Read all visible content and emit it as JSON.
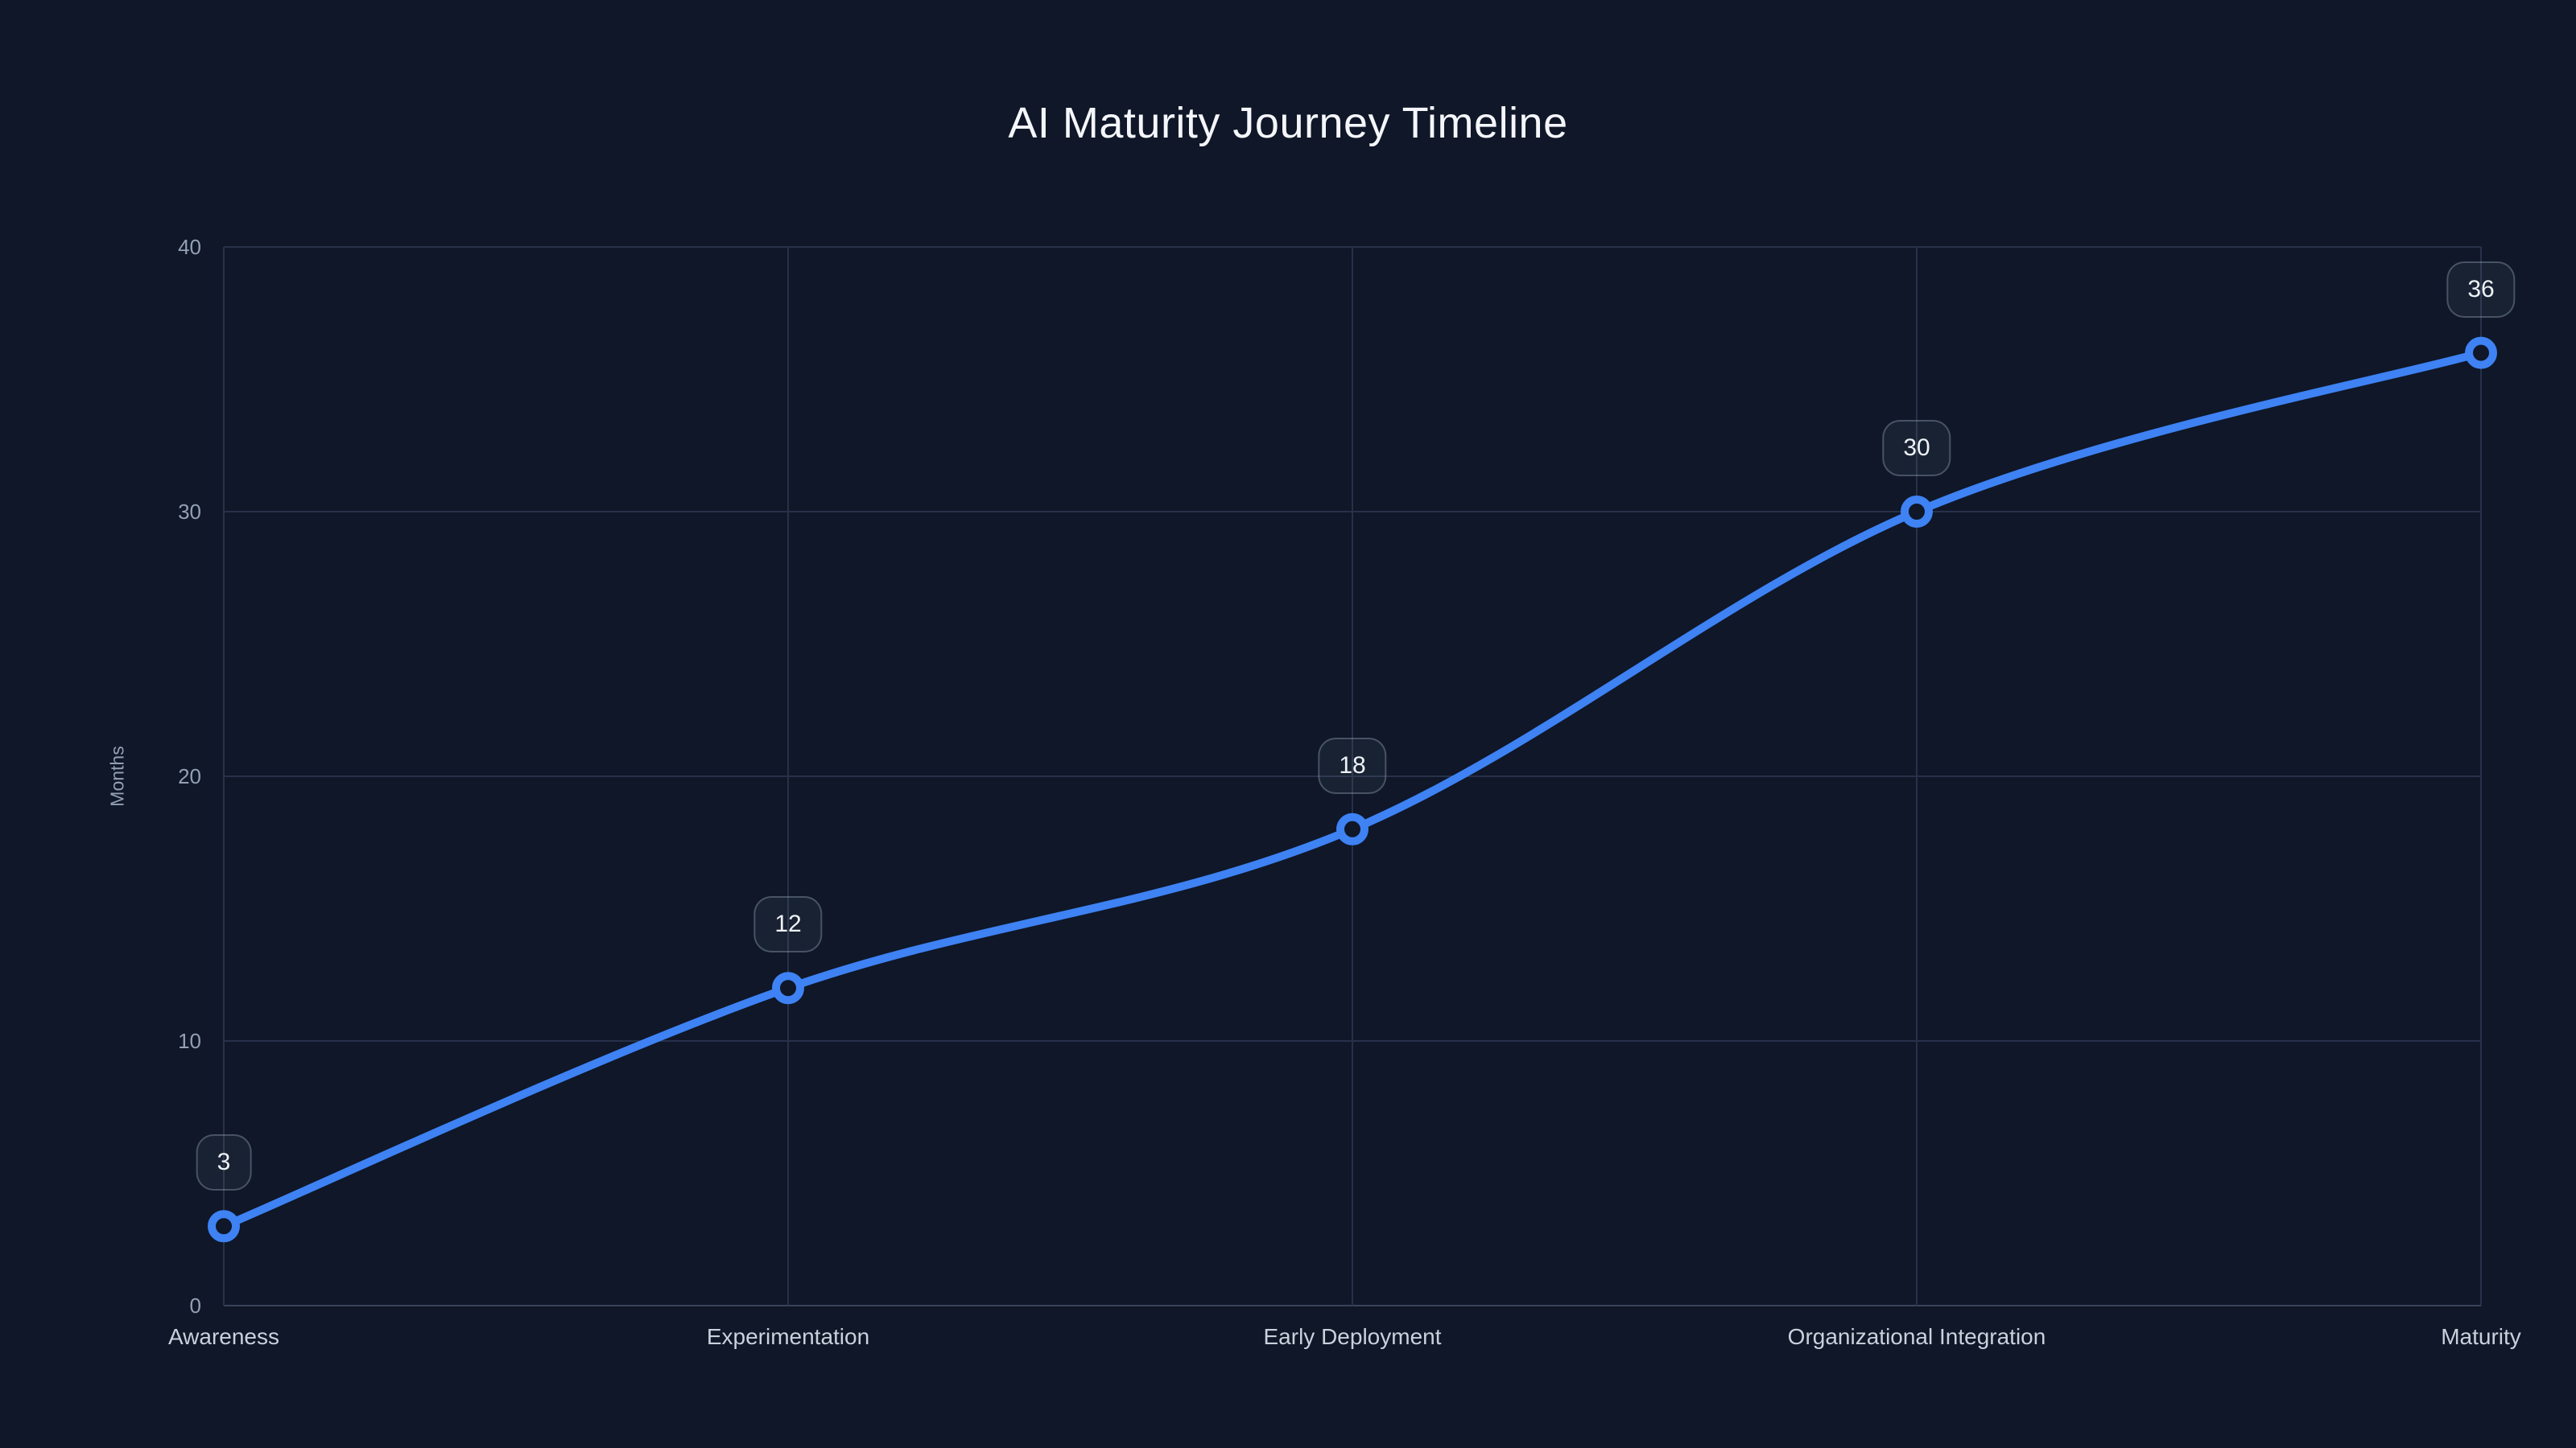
{
  "title": "AI Maturity Journey Timeline",
  "chart_data": {
    "type": "line",
    "categories": [
      "Awareness",
      "Experimentation",
      "Early Deployment",
      "Organizational Integration",
      "Maturity"
    ],
    "values": [
      3,
      12,
      18,
      30,
      36
    ],
    "title": "AI Maturity Journey Timeline",
    "xlabel": "",
    "ylabel": "Months",
    "ylim": [
      0,
      40
    ],
    "yticks": [
      0,
      10,
      20,
      30,
      40
    ],
    "grid": true,
    "legend": false,
    "smooth": true,
    "point_style": "open-circle",
    "data_labels": [
      3,
      12,
      18,
      30,
      36
    ]
  },
  "colors": {
    "background": "#0f1728",
    "line": "#3e82f4",
    "grid": "#273149",
    "axisline": "#3a455c",
    "tick": "#94a0b5",
    "xlabel": "#c9d1dd",
    "title": "#f4f6fa",
    "badge_fill": "rgba(148,163,184,0.08)",
    "badge_border": "rgba(148,163,184,0.38)",
    "badge_text": "#eef2f8"
  }
}
